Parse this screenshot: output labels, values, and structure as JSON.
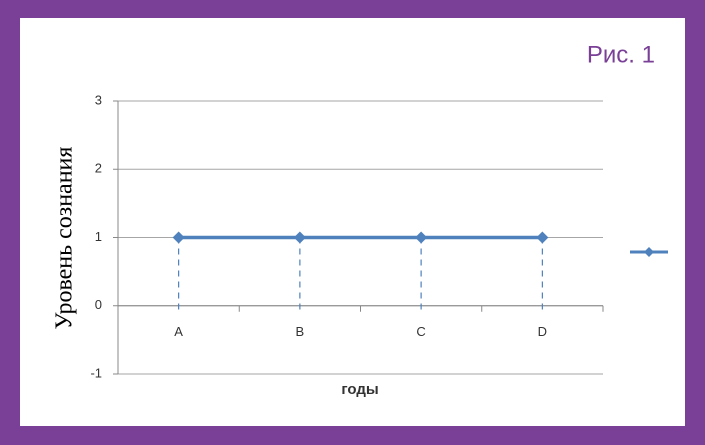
{
  "chart_data": {
    "type": "line",
    "annotation": "Рис. 1",
    "y_label": "Уровень сознания",
    "x_label": "годы",
    "categories": [
      "A",
      "B",
      "C",
      "D"
    ],
    "series": [
      {
        "color": "#4f81bd",
        "values": [
          1,
          1,
          1,
          1
        ]
      }
    ],
    "ylim": [
      -1,
      3
    ],
    "yticks": [
      -1,
      0,
      1,
      2,
      3
    ],
    "grid": true,
    "drop_lines": true
  }
}
